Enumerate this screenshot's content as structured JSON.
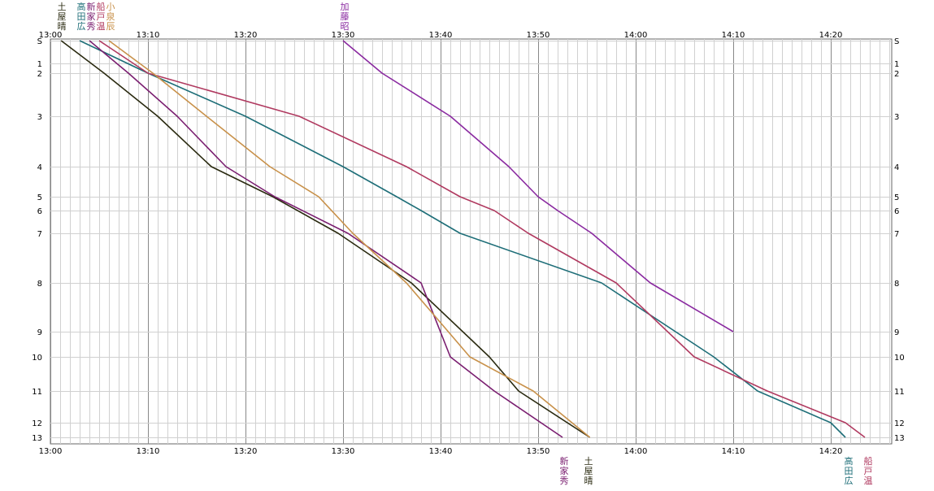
{
  "chart_data": {
    "type": "line",
    "title": "",
    "xlabel": "",
    "ylabel": "",
    "x_range": [
      "13:00",
      "14:30"
    ],
    "x_ticks": [
      "13:00",
      "13:10",
      "13:20",
      "13:30",
      "13:40",
      "13:50",
      "14:00",
      "14:10",
      "14:20"
    ],
    "y_ticks": [
      "S",
      "1",
      "2",
      "3",
      "4",
      "5",
      "6",
      "7",
      "8",
      "9",
      "10",
      "11",
      "12",
      "13"
    ],
    "grid": true,
    "series": [
      {
        "name": "土屋晴",
        "color": "#2a2a10",
        "points": [
          [
            "13:01.1",
            "S"
          ],
          [
            "13:05.5",
            "2"
          ],
          [
            "13:11.0",
            "3"
          ],
          [
            "13:16.5",
            "4"
          ],
          [
            "13:22.8",
            "5"
          ],
          [
            "13:29.5",
            "7"
          ],
          [
            "13:37.0",
            "8"
          ],
          [
            "13:45.0",
            "10"
          ],
          [
            "13:48.0",
            "11"
          ],
          [
            "13:55.3",
            "13"
          ]
        ],
        "top_label": [
          "土",
          "屋",
          "晴"
        ],
        "bottom_label": [
          "土",
          "屋",
          "晴"
        ]
      },
      {
        "name": "高田広",
        "color": "#1e6e78",
        "points": [
          [
            "13:03.0",
            "S"
          ],
          [
            "13:10.0",
            "2"
          ],
          [
            "13:20.0",
            "3"
          ],
          [
            "13:30.0",
            "4"
          ],
          [
            "13:35.5",
            "5"
          ],
          [
            "13:38.0",
            "6"
          ],
          [
            "13:42.0",
            "7"
          ],
          [
            "13:56.5",
            "8"
          ],
          [
            "14:08.0",
            "10"
          ],
          [
            "14:12.5",
            "11"
          ],
          [
            "14:20.0",
            "12"
          ],
          [
            "14:21.5",
            "13"
          ]
        ],
        "top_label": [
          "高",
          "田",
          "広"
        ],
        "bottom_label": [
          "高",
          "田",
          "広"
        ]
      },
      {
        "name": "新家秀",
        "color": "#7a1e70",
        "points": [
          [
            "13:04.0",
            "S"
          ],
          [
            "13:08.0",
            "2"
          ],
          [
            "13:13.0",
            "3"
          ],
          [
            "13:18.0",
            "4"
          ],
          [
            "13:23.0",
            "5"
          ],
          [
            "13:30.5",
            "7"
          ],
          [
            "13:38.0",
            "8"
          ],
          [
            "13:41.0",
            "10"
          ],
          [
            "13:45.5",
            "11"
          ],
          [
            "13:52.5",
            "13"
          ]
        ],
        "top_label": [
          "新",
          "家",
          "秀"
        ],
        "bottom_label": [
          "新",
          "家",
          "秀"
        ]
      },
      {
        "name": "船戸温",
        "color": "#b03a60",
        "points": [
          [
            "13:05.0",
            "S"
          ],
          [
            "13:10.0",
            "2"
          ],
          [
            "13:25.5",
            "3"
          ],
          [
            "13:36.5",
            "4"
          ],
          [
            "13:42.0",
            "5"
          ],
          [
            "13:45.5",
            "6"
          ],
          [
            "13:49.0",
            "7"
          ],
          [
            "13:58.0",
            "8"
          ],
          [
            "14:06.0",
            "10"
          ],
          [
            "14:13.5",
            "11"
          ],
          [
            "14:21.5",
            "12"
          ],
          [
            "14:23.5",
            "13"
          ]
        ],
        "top_label": [
          "船",
          "戸",
          "温"
        ],
        "bottom_label": [
          "船",
          "戸",
          "温"
        ]
      },
      {
        "name": "小泉辰",
        "color": "#c8914a",
        "points": [
          [
            "13:06.0",
            "S"
          ],
          [
            "13:10.5",
            "2"
          ],
          [
            "13:16.0",
            "3"
          ],
          [
            "13:22.5",
            "4"
          ],
          [
            "13:27.5",
            "5"
          ],
          [
            "13:31.0",
            "7"
          ],
          [
            "13:36.5",
            "8"
          ],
          [
            "13:43.0",
            "10"
          ],
          [
            "13:49.5",
            "11"
          ],
          [
            "13:55.3",
            "13"
          ]
        ],
        "top_label": [
          "小",
          "泉",
          "辰"
        ],
        "bottom_label": []
      },
      {
        "name": "加藤昭",
        "color": "#8a2aa0",
        "points": [
          [
            "13:30.0",
            "S"
          ],
          [
            "13:34.0",
            "2"
          ],
          [
            "13:41.0",
            "3"
          ],
          [
            "13:47.0",
            "4"
          ],
          [
            "13:50.0",
            "5"
          ],
          [
            "13:52.0",
            "6"
          ],
          [
            "13:55.5",
            "7"
          ],
          [
            "14:01.5",
            "8"
          ],
          [
            "14:10.0",
            "9"
          ]
        ],
        "top_label": [
          "加",
          "藤",
          "昭"
        ],
        "bottom_label": []
      }
    ]
  }
}
